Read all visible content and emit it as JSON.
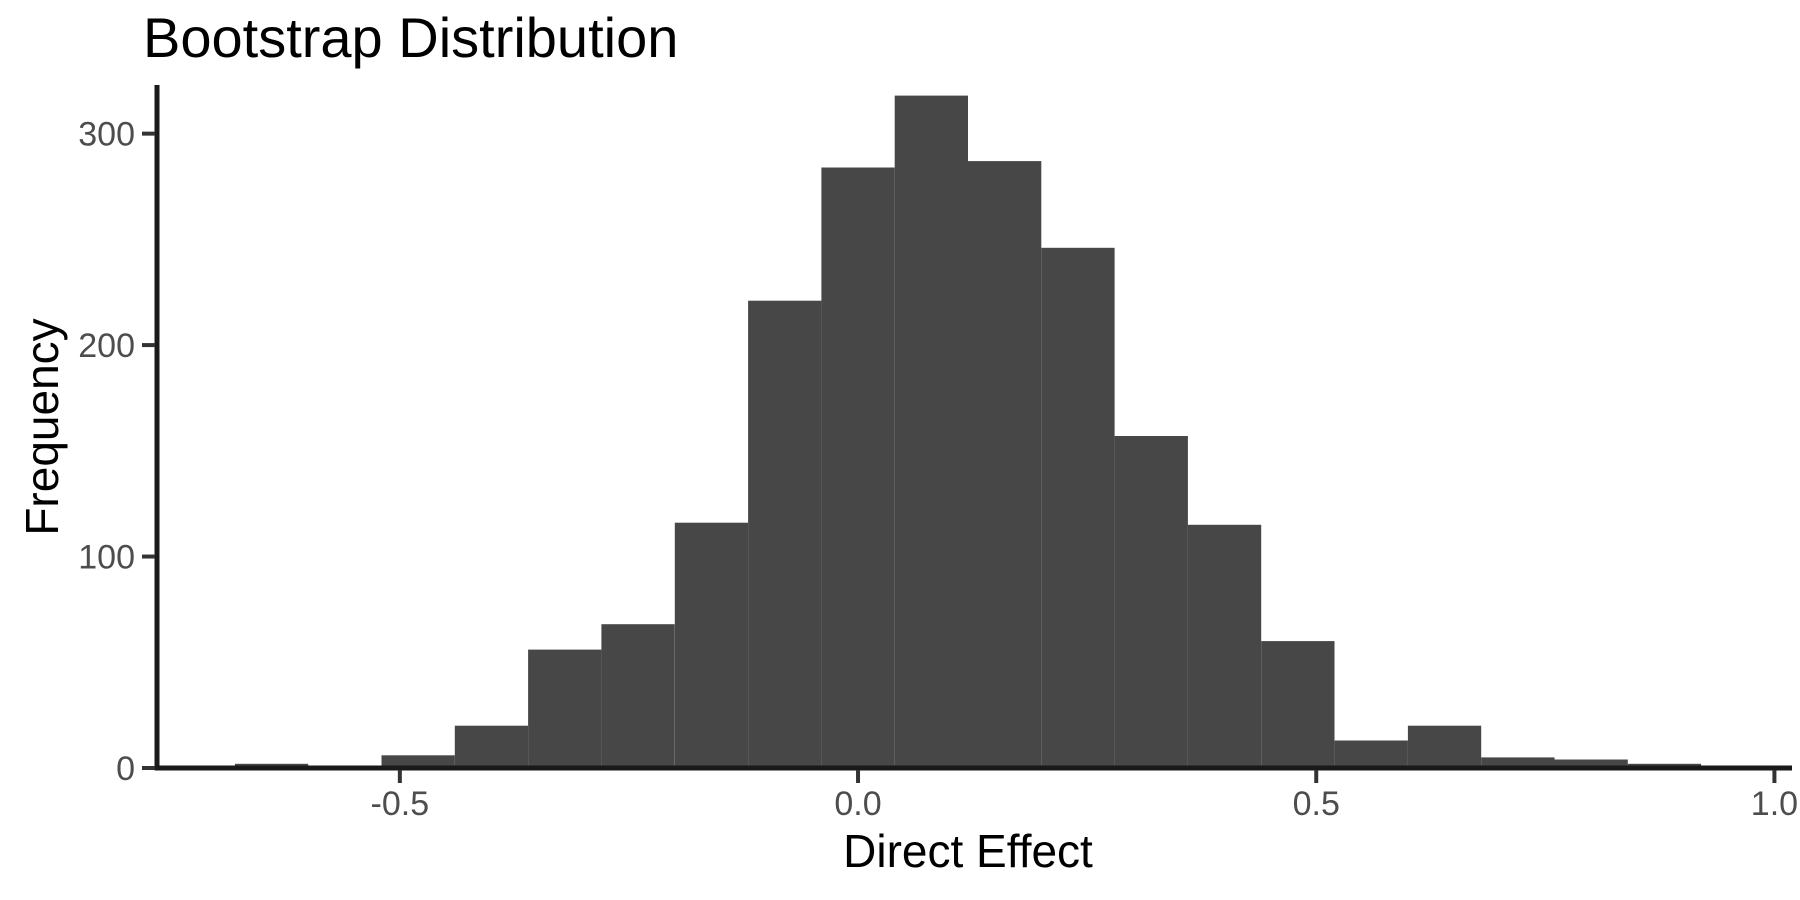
{
  "page": {
    "background": "#ffffff"
  },
  "chart_data": {
    "type": "bar",
    "kind": "histogram",
    "title": "Bootstrap Distribution",
    "xlabel": "Direct Effect",
    "ylabel": "Frequency",
    "grid": false,
    "legend": "none",
    "xlim": [
      -0.765,
      1.017
    ],
    "ylim": [
      0,
      323
    ],
    "x_ticks": [
      {
        "value": -0.5,
        "label": "-0.5"
      },
      {
        "value": 0.0,
        "label": "0.0"
      },
      {
        "value": 0.5,
        "label": "0.5"
      },
      {
        "value": 1.0,
        "label": "1.0"
      }
    ],
    "y_ticks": [
      {
        "value": 0,
        "label": "0"
      },
      {
        "value": 100,
        "label": "100"
      },
      {
        "value": 200,
        "label": "200"
      },
      {
        "value": 300,
        "label": "300"
      }
    ],
    "bin_edges": [
      -0.68,
      -0.6,
      -0.52,
      -0.44,
      -0.36,
      -0.28,
      -0.2,
      -0.12,
      -0.04,
      0.04,
      0.12,
      0.2,
      0.28,
      0.36,
      0.44,
      0.52,
      0.6,
      0.68,
      0.76,
      0.84,
      0.92,
      1.0
    ],
    "counts": [
      2,
      0,
      6,
      20,
      56,
      68,
      116,
      221,
      284,
      318,
      287,
      246,
      157,
      115,
      60,
      13,
      20,
      5,
      4,
      2,
      0
    ],
    "colors": {
      "bar_fill": "#474747",
      "axis_line": "#1a1a1a",
      "tick_mark": "#333333",
      "tick_label": "#4d4d4d",
      "title": "#000000",
      "axis_title": "#000000",
      "background": "#ffffff"
    }
  }
}
